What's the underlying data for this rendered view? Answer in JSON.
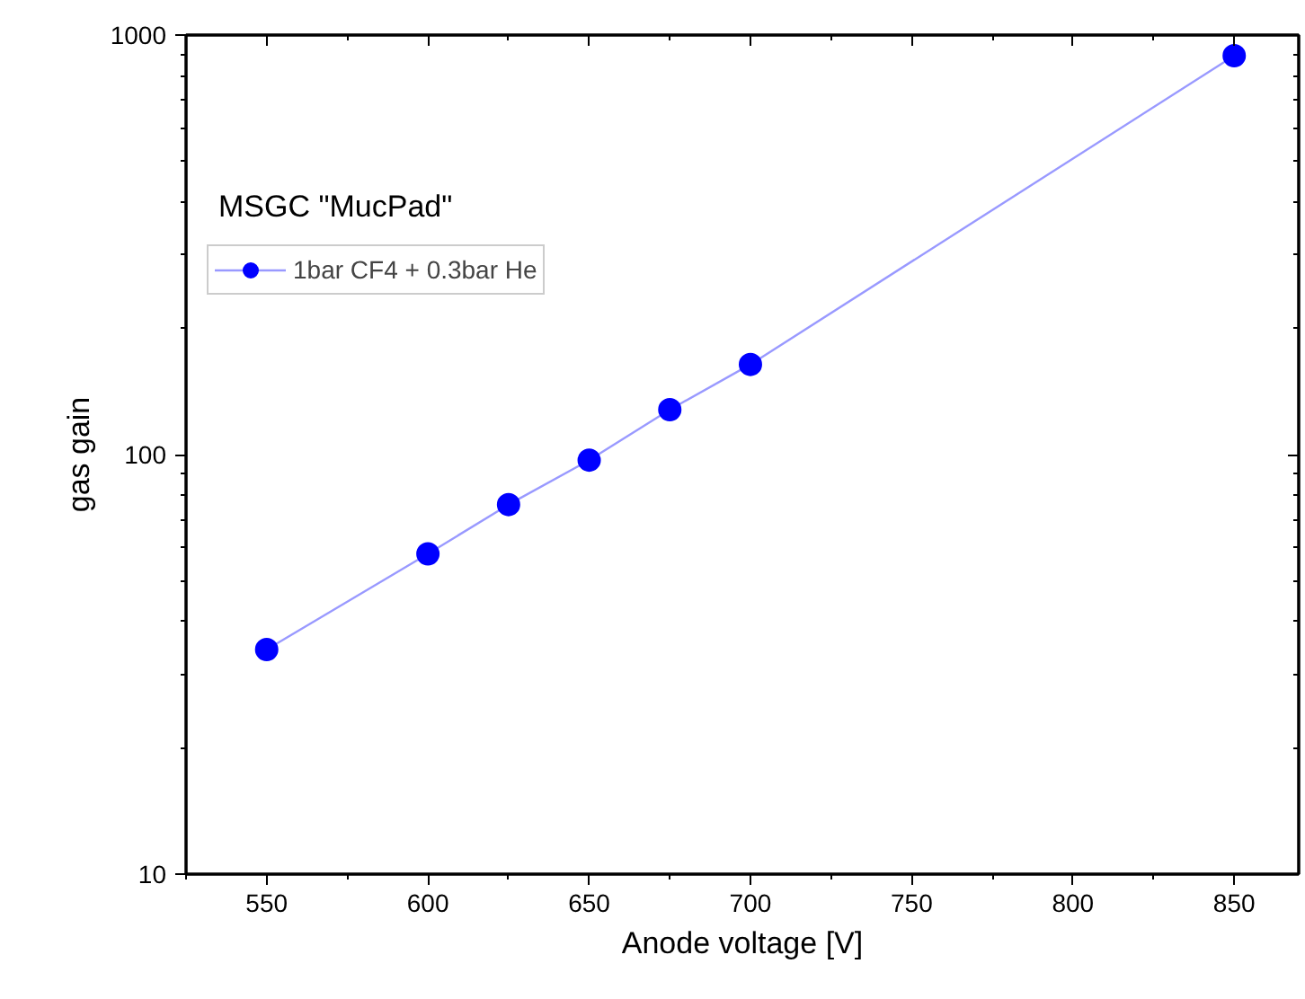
{
  "chart_data": {
    "type": "line",
    "xlabel": "Anode voltage [V]",
    "ylabel": "gas gain",
    "annotations": [
      "MSGC \"MucPad\""
    ],
    "x": [
      550,
      600,
      625,
      650,
      675,
      700,
      850
    ],
    "series": [
      {
        "name": "1bar CF4 + 0.3bar He",
        "color": "#0000ff",
        "values": [
          34.3,
          58,
          76,
          97,
          128,
          164,
          893
        ]
      }
    ],
    "xlim": [
      525,
      870
    ],
    "xticks": [
      550,
      600,
      650,
      700,
      750,
      800,
      850
    ],
    "ylim": [
      10,
      1000
    ],
    "yticks": [
      10,
      100,
      1000
    ],
    "log": "y",
    "grid": false,
    "legend": "top left",
    "marker": "circle",
    "line_style": "solid"
  }
}
